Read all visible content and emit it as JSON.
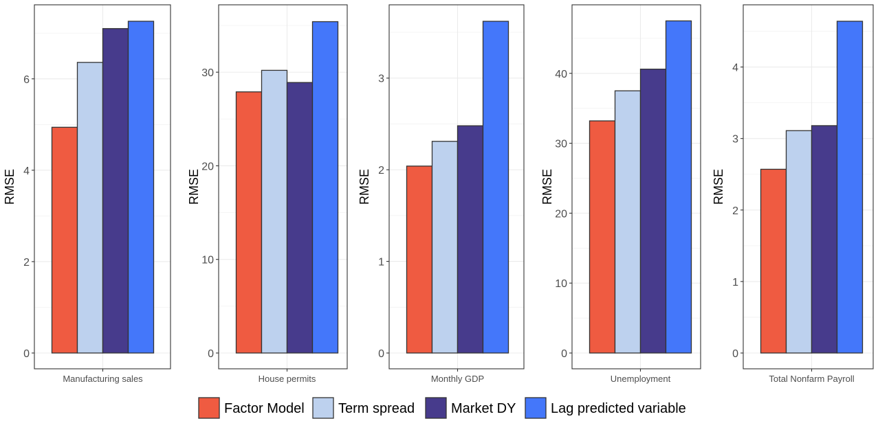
{
  "chart_data": [
    {
      "type": "bar",
      "categories": [
        "Manufacturing sales"
      ],
      "ylabel": "RMSE",
      "ylim": [
        0,
        7.62
      ],
      "yticks": [
        0,
        2,
        4,
        6
      ],
      "series": [
        {
          "name": "Factor Model",
          "values": [
            4.94
          ]
        },
        {
          "name": "Term spread",
          "values": [
            6.36
          ]
        },
        {
          "name": "Market DY",
          "values": [
            7.1
          ]
        },
        {
          "name": "Lag predicted variable",
          "values": [
            7.26
          ]
        }
      ],
      "grid": true
    },
    {
      "type": "bar",
      "categories": [
        "House permits"
      ],
      "ylabel": "RMSE",
      "ylim": [
        0,
        37.2
      ],
      "yticks": [
        0,
        10,
        20,
        30
      ],
      "series": [
        {
          "name": "Factor Model",
          "values": [
            27.9
          ]
        },
        {
          "name": "Term spread",
          "values": [
            30.2
          ]
        },
        {
          "name": "Market DY",
          "values": [
            28.9
          ]
        },
        {
          "name": "Lag predicted variable",
          "values": [
            35.4
          ]
        }
      ],
      "grid": true
    },
    {
      "type": "bar",
      "categories": [
        "Monthly GDP"
      ],
      "ylabel": "RMSE",
      "ylim": [
        0,
        3.8
      ],
      "yticks": [
        0,
        1,
        2,
        3
      ],
      "series": [
        {
          "name": "Factor Model",
          "values": [
            2.04
          ]
        },
        {
          "name": "Term spread",
          "values": [
            2.31
          ]
        },
        {
          "name": "Market DY",
          "values": [
            2.48
          ]
        },
        {
          "name": "Lag predicted variable",
          "values": [
            3.62
          ]
        }
      ],
      "grid": true
    },
    {
      "type": "bar",
      "categories": [
        "Unemployment"
      ],
      "ylabel": "RMSE",
      "ylim": [
        0,
        49.8
      ],
      "yticks": [
        0,
        10,
        20,
        30,
        40
      ],
      "series": [
        {
          "name": "Factor Model",
          "values": [
            33.2
          ]
        },
        {
          "name": "Term spread",
          "values": [
            37.5
          ]
        },
        {
          "name": "Market DY",
          "values": [
            40.6
          ]
        },
        {
          "name": "Lag predicted variable",
          "values": [
            47.5
          ]
        }
      ],
      "grid": true
    },
    {
      "type": "bar",
      "categories": [
        "Total Nonfarm Payroll"
      ],
      "ylabel": "RMSE",
      "ylim": [
        0,
        4.87
      ],
      "yticks": [
        0,
        1,
        2,
        3,
        4
      ],
      "series": [
        {
          "name": "Factor Model",
          "values": [
            2.57
          ]
        },
        {
          "name": "Term spread",
          "values": [
            3.11
          ]
        },
        {
          "name": "Market DY",
          "values": [
            3.18
          ]
        },
        {
          "name": "Lag predicted variable",
          "values": [
            4.64
          ]
        }
      ],
      "grid": true
    }
  ],
  "legend": {
    "placement": "bottom",
    "items": [
      {
        "label": "Factor Model",
        "color": "#EF5B41"
      },
      {
        "label": "Term spread",
        "color": "#BDD1EE"
      },
      {
        "label": "Market DY",
        "color": "#473B8C"
      },
      {
        "label": "Lag predicted variable",
        "color": "#4477FA"
      }
    ]
  }
}
